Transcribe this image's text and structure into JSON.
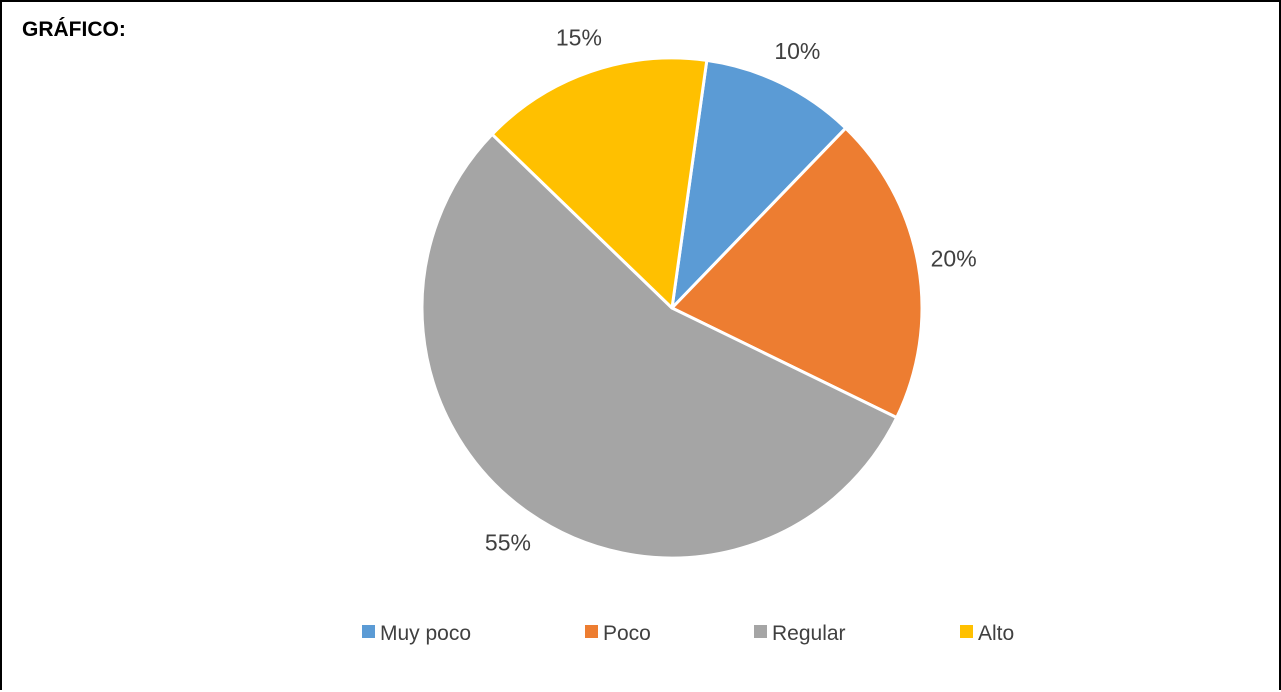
{
  "heading": "GRÁFICO:",
  "chart_data": {
    "type": "pie",
    "categories": [
      "Muy poco",
      "Poco",
      "Regular",
      "Alto"
    ],
    "values": [
      10,
      20,
      55,
      15
    ],
    "data_labels": [
      "10%",
      "20%",
      "55%",
      "15%"
    ],
    "colors": [
      "#5B9BD5",
      "#ED7D31",
      "#A5A5A5",
      "#FFC000"
    ],
    "start_angle_deg": 8,
    "legend_position": "bottom"
  }
}
